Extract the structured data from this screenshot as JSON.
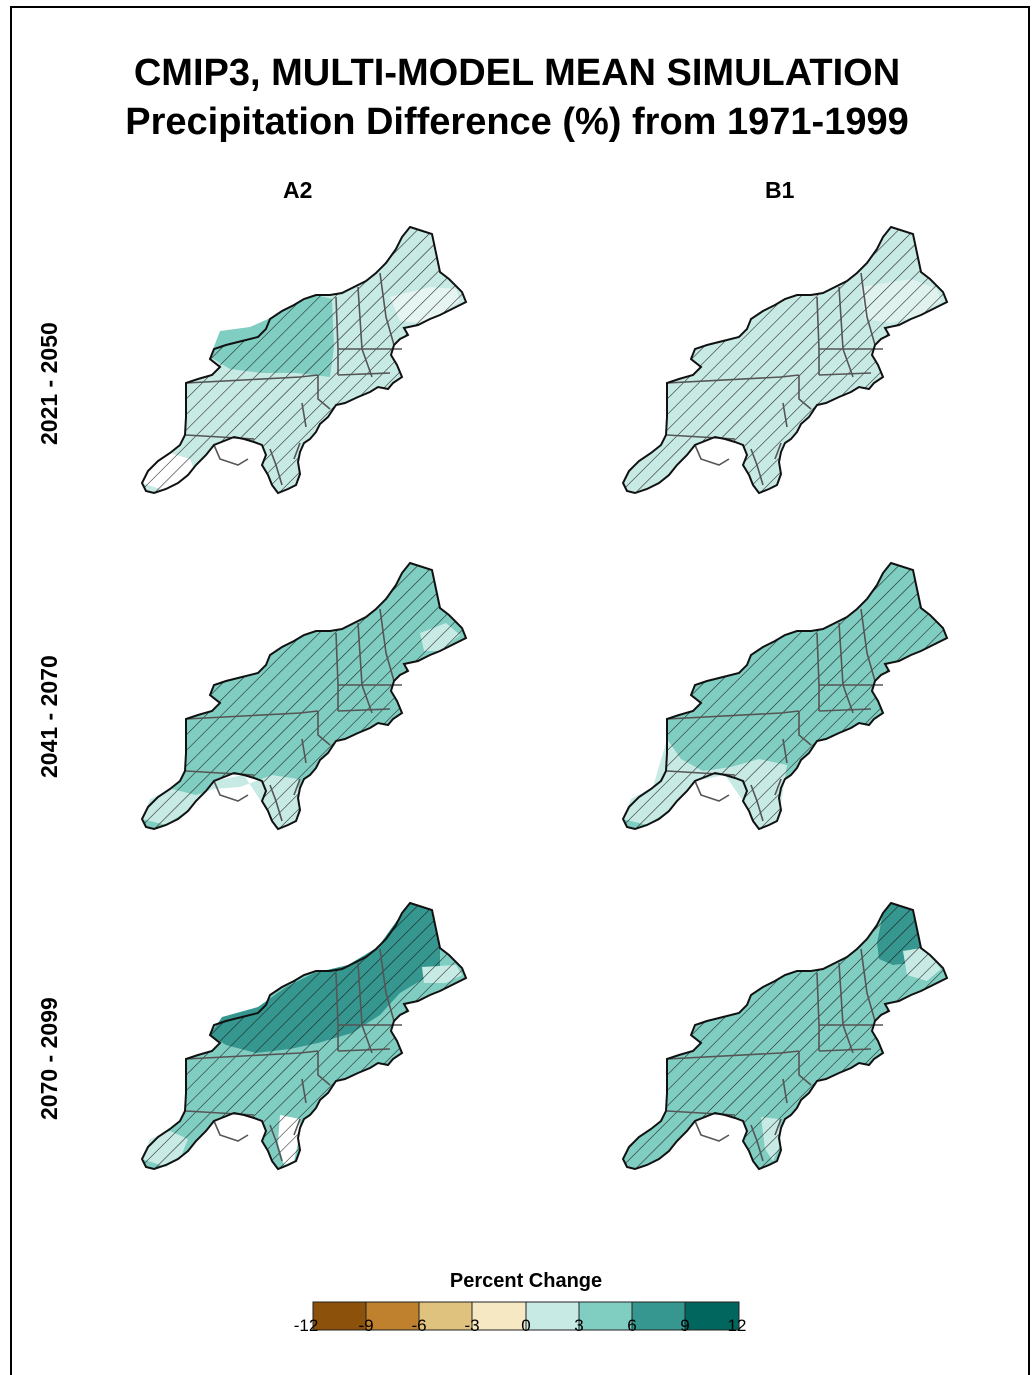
{
  "title": {
    "line1": "CMIP3, MULTI-MODEL MEAN SIMULATION",
    "line2": "Precipitation Difference (%) from 1971-1999"
  },
  "columns": [
    "A2",
    "B1"
  ],
  "rows": [
    "2021 - 2050",
    "2041 - 2070",
    "2070 - 2099"
  ],
  "panels": [
    {
      "scenario": "A2",
      "period": "2021 - 2050",
      "dominant_class": "0 to 3",
      "hatched": true
    },
    {
      "scenario": "B1",
      "period": "2021 - 2050",
      "dominant_class": "0 to 3",
      "hatched": true
    },
    {
      "scenario": "A2",
      "period": "2041 - 2070",
      "dominant_class": "3 to 6",
      "hatched": true
    },
    {
      "scenario": "B1",
      "period": "2041 - 2070",
      "dominant_class": "3 to 6",
      "hatched": true
    },
    {
      "scenario": "A2",
      "period": "2070 - 2099",
      "dominant_class": "3 to 6",
      "hatched": true
    },
    {
      "scenario": "B1",
      "period": "2070 - 2099",
      "dominant_class": "3 to 6",
      "hatched": true
    }
  ],
  "legend": {
    "title": "Percent Change",
    "ticks": [
      "-12",
      "-9",
      "-6",
      "-3",
      "0",
      "3",
      "6",
      "9",
      "12"
    ],
    "colors": [
      "#8c510a",
      "#bf812d",
      "#dfc27d",
      "#f6e8c3",
      "#c7eae5",
      "#80cdc1",
      "#35978f",
      "#01665e"
    ]
  }
}
